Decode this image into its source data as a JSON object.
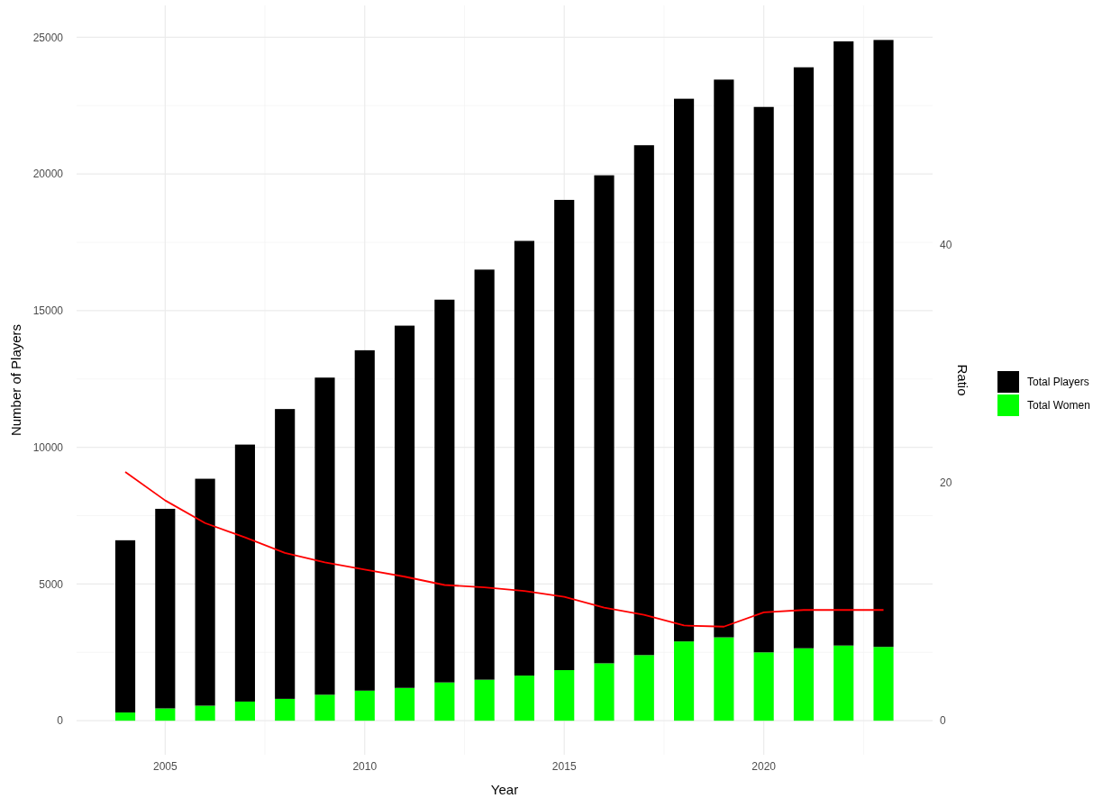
{
  "chart_data": {
    "type": "bar",
    "xlabel": "Year",
    "ylabel": "Number of Players",
    "y2label": "Ratio",
    "x": [
      2004,
      2005,
      2006,
      2007,
      2008,
      2009,
      2010,
      2011,
      2012,
      2013,
      2014,
      2015,
      2016,
      2017,
      2018,
      2019,
      2020,
      2021,
      2022,
      2023
    ],
    "series": [
      {
        "name": "Total Women",
        "color": "#00ff00",
        "values": [
          300,
          450,
          550,
          700,
          800,
          950,
          1100,
          1200,
          1400,
          1500,
          1650,
          1850,
          2100,
          2400,
          2900,
          3050,
          2500,
          2650,
          2750,
          2700
        ]
      },
      {
        "name": "Total Players",
        "color": "#000000",
        "values": [
          6300,
          7300,
          8300,
          9400,
          10600,
          11600,
          12450,
          13250,
          14000,
          15000,
          15900,
          17200,
          17850,
          18650,
          19850,
          20400,
          19950,
          21250,
          22100,
          22200
        ]
      },
      {
        "type": "line",
        "axis": "y2",
        "color": "#ff0000",
        "values": [
          20.9,
          18.5,
          16.6,
          15.4,
          14.1,
          13.3,
          12.7,
          12.1,
          11.4,
          11.2,
          10.9,
          10.4,
          9.5,
          8.9,
          8.0,
          7.9,
          9.1,
          9.3,
          9.3,
          9.3
        ]
      }
    ],
    "xlim": [
      2002.78,
      2024.23
    ],
    "xticks": [
      2005,
      2010,
      2015,
      2020
    ],
    "ylim": [
      -1246,
      26164
    ],
    "yticks": [
      0,
      5000,
      10000,
      15000,
      20000,
      25000
    ],
    "y2lim": [
      -2.86,
      60.08
    ],
    "y2ticks": [
      0,
      20,
      40
    ],
    "stacked": true,
    "grid": true,
    "legend": "right"
  }
}
